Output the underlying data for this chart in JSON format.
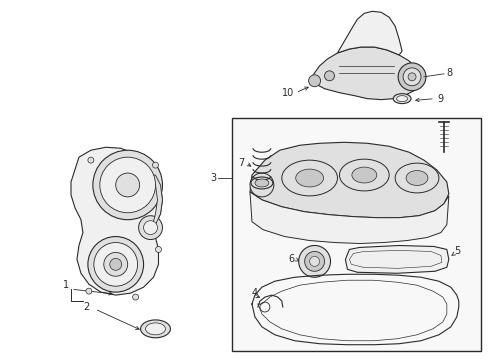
{
  "background_color": "#ffffff",
  "line_color": "#2a2a2a",
  "fill_light": "#f0f0f0",
  "fill_med": "#e0e0e0",
  "fill_dark": "#c8c8c8",
  "label_fs": 7,
  "lw": 0.7
}
